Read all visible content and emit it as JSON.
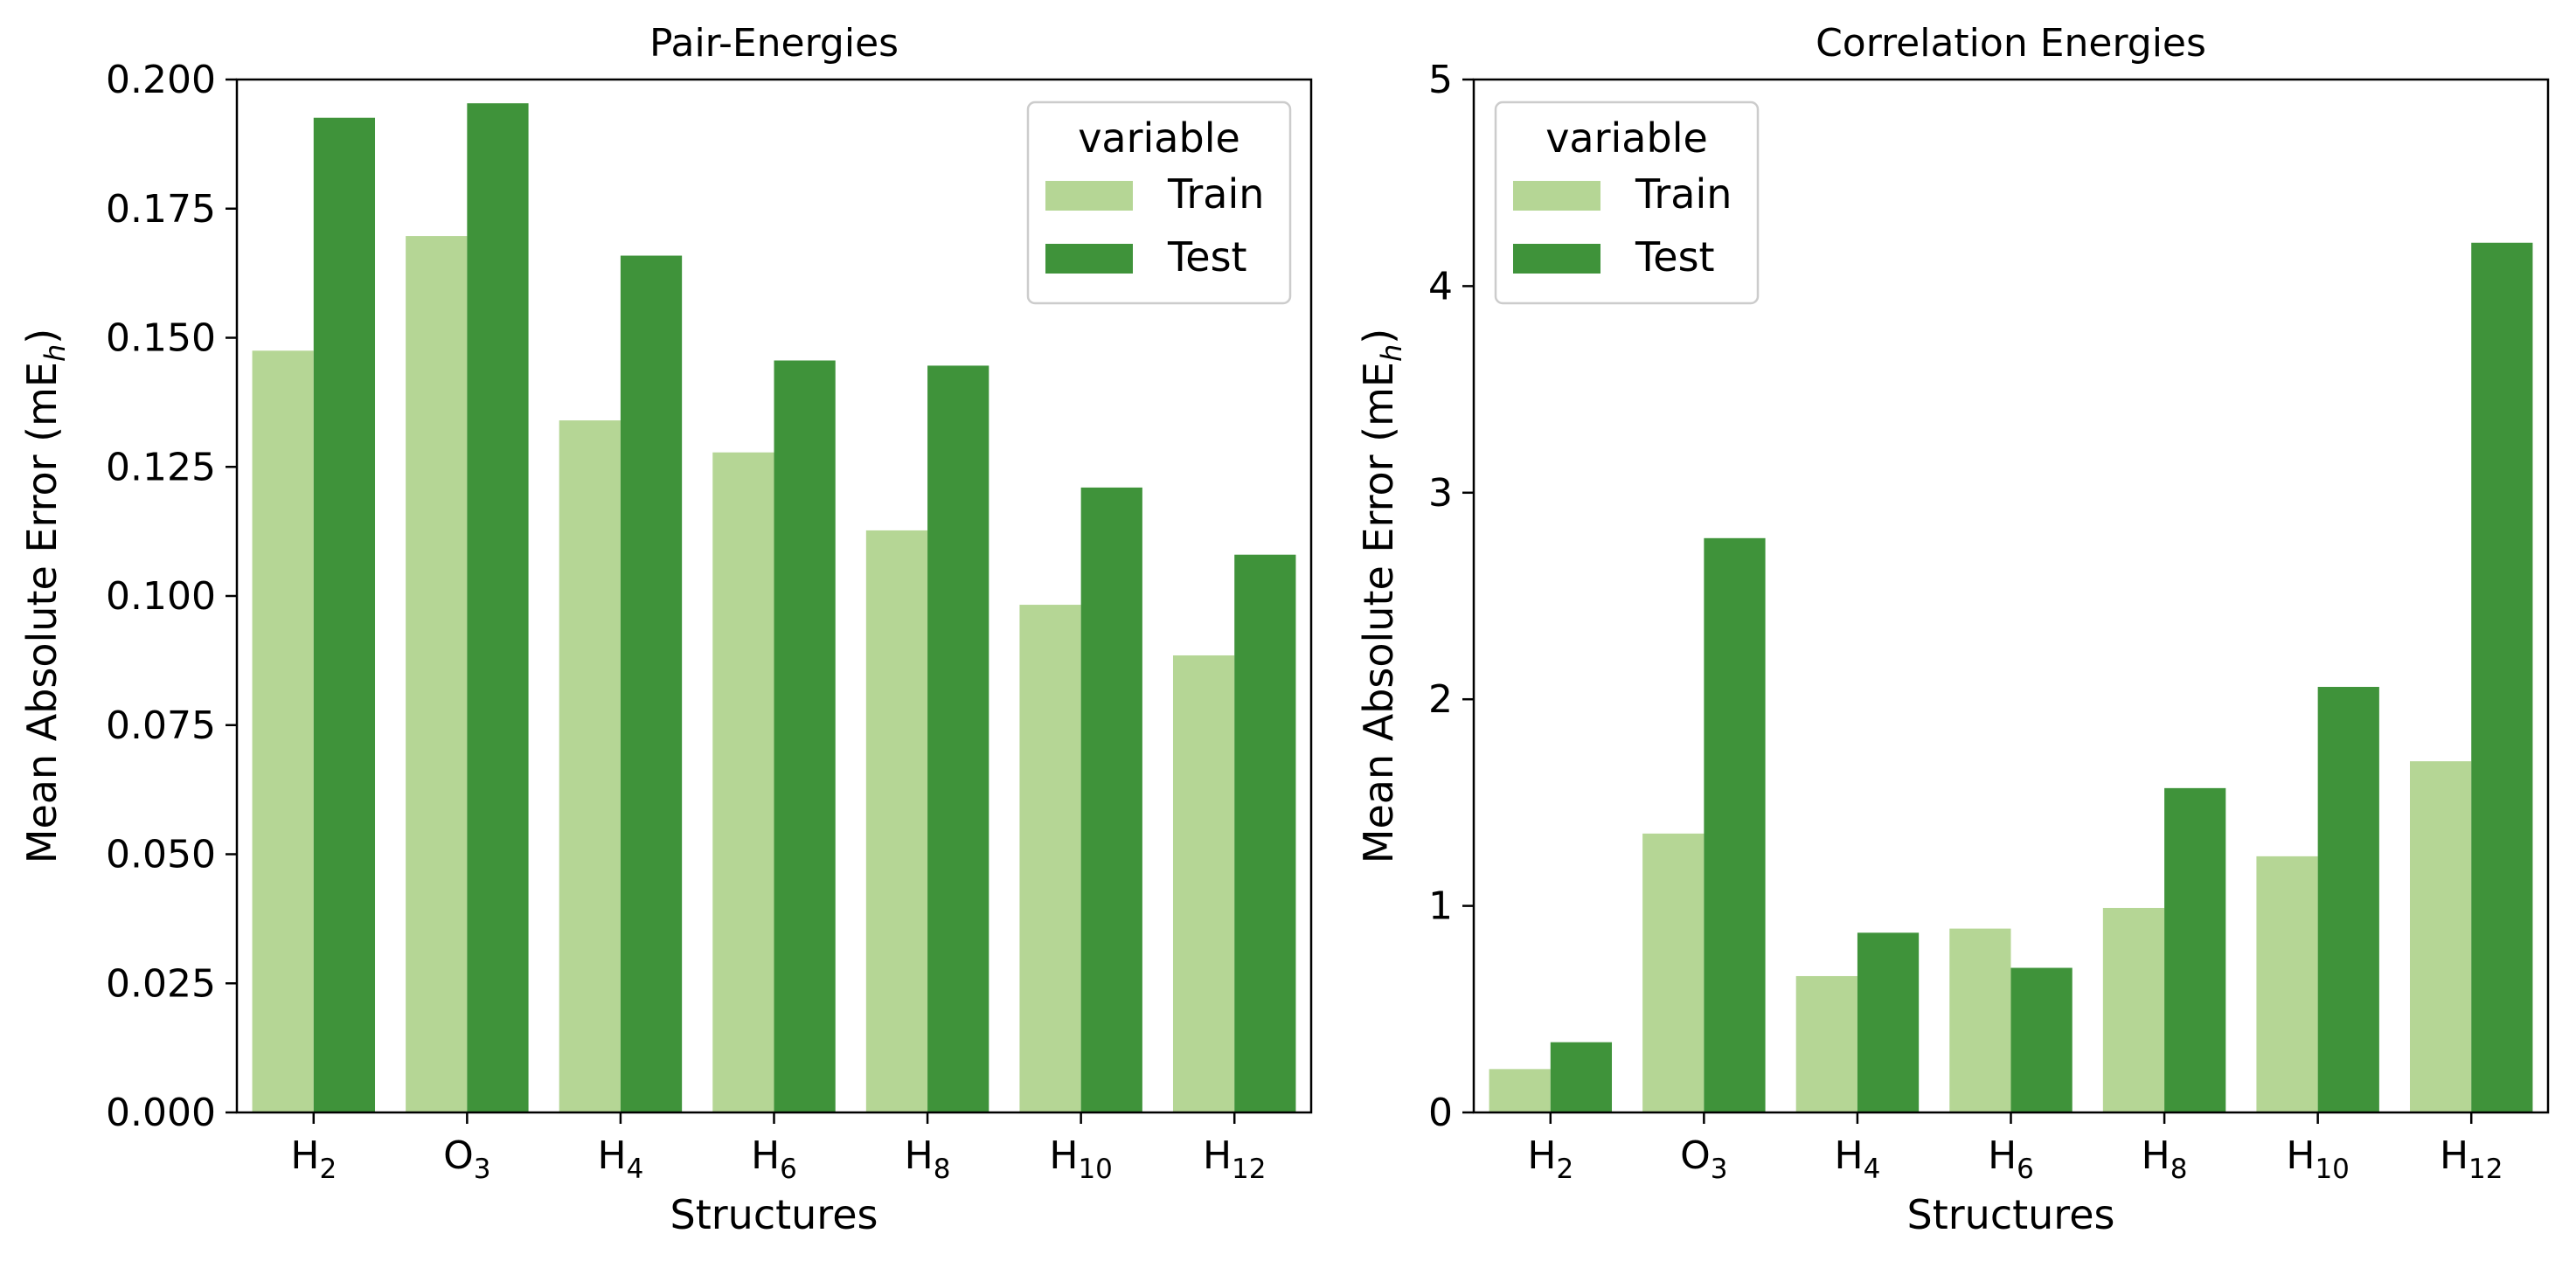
{
  "colors": {
    "train": "#b5d695",
    "test": "#3f933a"
  },
  "chart_data": [
    {
      "type": "bar",
      "title": "Pair-Energies",
      "xlabel": "Structures",
      "ylabel": "Mean Absolute Error (mEh)",
      "categories": [
        {
          "base": "H",
          "sub": "2"
        },
        {
          "base": "O",
          "sub": "3"
        },
        {
          "base": "H",
          "sub": "4"
        },
        {
          "base": "H",
          "sub": "6"
        },
        {
          "base": "H",
          "sub": "8"
        },
        {
          "base": "H",
          "sub": "10"
        },
        {
          "base": "H",
          "sub": "12"
        }
      ],
      "series": [
        {
          "name": "Train",
          "values": [
            0.1475,
            0.1697,
            0.134,
            0.1278,
            0.1127,
            0.0983,
            0.0885
          ]
        },
        {
          "name": "Test",
          "values": [
            0.1926,
            0.1954,
            0.1659,
            0.1456,
            0.1446,
            0.121,
            0.108
          ]
        }
      ],
      "ylim": [
        0,
        0.2
      ],
      "yticks": [
        "0.000",
        "0.025",
        "0.050",
        "0.075",
        "0.100",
        "0.125",
        "0.150",
        "0.175",
        "0.200"
      ],
      "grid": false,
      "legend": {
        "title": "variable",
        "placement": "top-right"
      }
    },
    {
      "type": "bar",
      "title": "Correlation Energies",
      "xlabel": "Structures",
      "ylabel": "Mean Absolute Error (mEh)",
      "categories": [
        {
          "base": "H",
          "sub": "2"
        },
        {
          "base": "O",
          "sub": "3"
        },
        {
          "base": "H",
          "sub": "4"
        },
        {
          "base": "H",
          "sub": "6"
        },
        {
          "base": "H",
          "sub": "8"
        },
        {
          "base": "H",
          "sub": "10"
        },
        {
          "base": "H",
          "sub": "12"
        }
      ],
      "series": [
        {
          "name": "Train",
          "values": [
            0.21,
            1.35,
            0.66,
            0.89,
            0.99,
            1.24,
            1.7
          ]
        },
        {
          "name": "Test",
          "values": [
            0.34,
            2.78,
            0.87,
            0.7,
            1.57,
            2.06,
            4.21
          ]
        }
      ],
      "ylim": [
        0,
        5
      ],
      "yticks": [
        "0",
        "1",
        "2",
        "3",
        "4",
        "5"
      ],
      "grid": false,
      "legend": {
        "title": "variable",
        "placement": "top-left"
      }
    }
  ]
}
